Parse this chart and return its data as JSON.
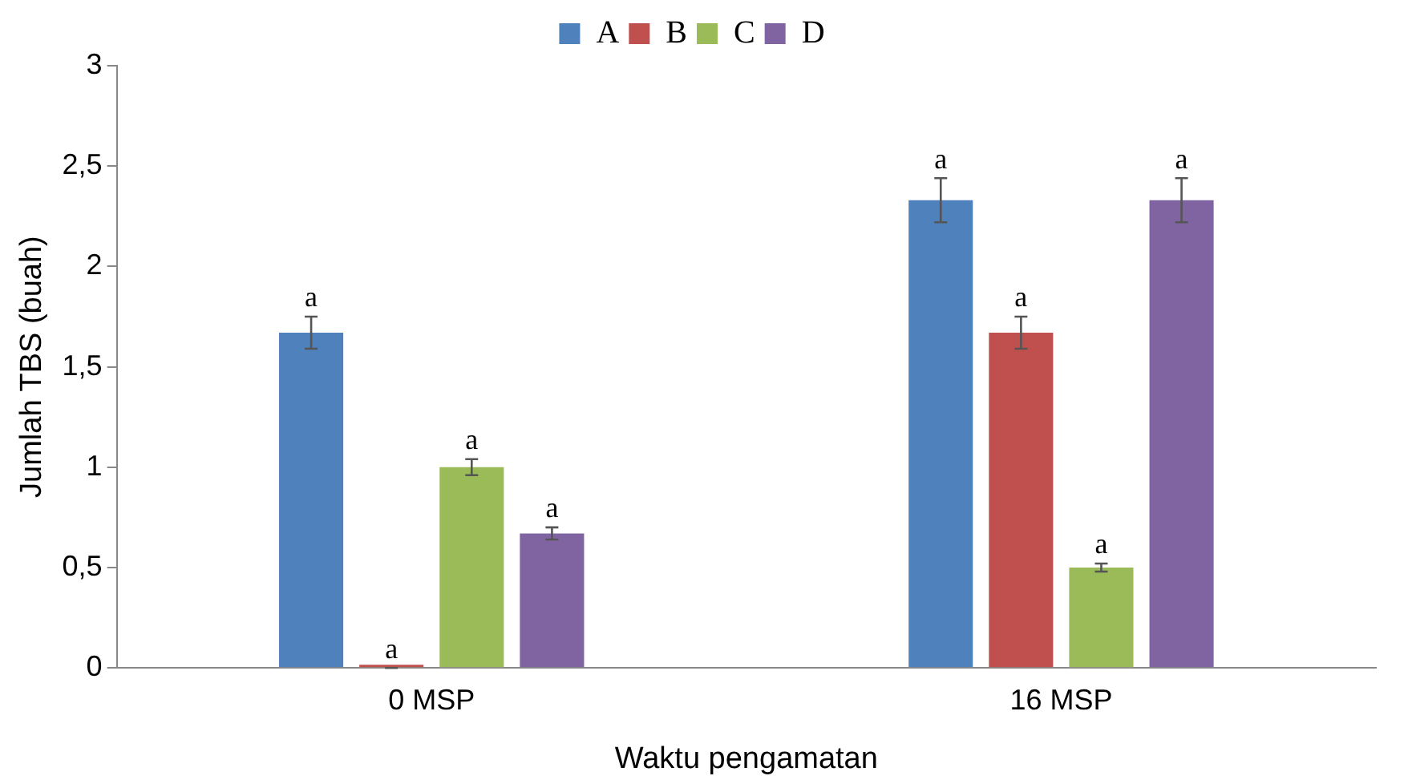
{
  "chart_data": {
    "type": "bar",
    "xlabel": "Waktu pengamatan",
    "ylabel": "Jumlah TBS (buah)",
    "categories": [
      "0 MSP",
      "16 MSP"
    ],
    "series": [
      {
        "name": "A",
        "color": "#4f81bd",
        "values": [
          1.67,
          2.33
        ],
        "errors": [
          0.08,
          0.11
        ],
        "value_labels": [
          "a",
          "a"
        ]
      },
      {
        "name": "B",
        "color": "#c0504d",
        "values": [
          0,
          1.67
        ],
        "errors": [
          0,
          0.08
        ],
        "value_labels": [
          "a",
          "a"
        ]
      },
      {
        "name": "C",
        "color": "#9bbb59",
        "values": [
          1.0,
          0.5
        ],
        "errors": [
          0.04,
          0.02
        ],
        "value_labels": [
          "a",
          "a"
        ]
      },
      {
        "name": "D",
        "color": "#8064a2",
        "values": [
          0.67,
          2.33
        ],
        "errors": [
          0.03,
          0.11
        ],
        "value_labels": [
          "a",
          "a"
        ]
      }
    ],
    "ylim": [
      0,
      3
    ],
    "yticks": [
      0,
      {
        "value": 0.5,
        "label": "0,5"
      },
      1,
      {
        "value": 1.5,
        "label": "1,5"
      },
      2,
      {
        "value": 2.5,
        "label": "2,5"
      },
      3
    ],
    "grid": false,
    "legend": "top"
  }
}
